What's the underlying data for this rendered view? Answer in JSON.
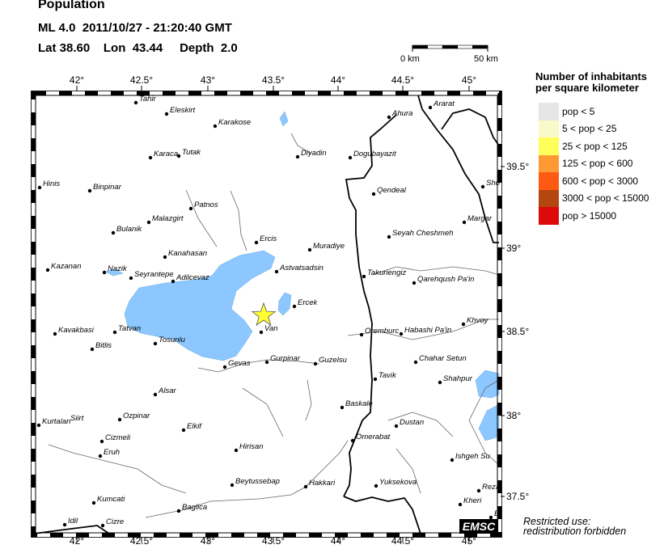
{
  "header": {
    "title": "Population",
    "event": "ML 4.0  2011/10/27 - 21:20:40 GMT",
    "location": "Lat 38.60    Lon  43.44     Depth  2.0"
  },
  "scale_bar": {
    "start_label": "0 km",
    "end_label": "50 km"
  },
  "axes": {
    "lon_labels": [
      "42°",
      "42.5°",
      "43°",
      "43.5°",
      "44°",
      "44.5°",
      "45°"
    ],
    "lat_labels": [
      "39.5°",
      "39°",
      "38.5°",
      "38°",
      "37.5°"
    ]
  },
  "epicenter": {
    "lat": 38.6,
    "lon": 43.44,
    "marker": "star",
    "color": "#ffff33"
  },
  "cities": [
    "Tahir",
    "Eleskirt",
    "Karakose",
    "Diyadin",
    "Dogubayazit",
    "Ahura",
    "Ararat",
    "Karaca",
    "Tutak",
    "Hinis",
    "Binpinar",
    "Patnos",
    "Qendeal",
    "Sho",
    "Malazgirt",
    "Bulanik",
    "Margar",
    "Seyah Cheshmeh",
    "Ercis",
    "Muradiye",
    "Kanahasan",
    "Kazanan",
    "Nazik",
    "Seyrantepe",
    "Adilcevaz",
    "Astvatsadsin",
    "Takuriengiz",
    "Qarehqush Pa'in",
    "Ercek",
    "Van",
    "Kavakbasi",
    "Tatvan",
    "Bitlis",
    "Tosunlu",
    "Oremburc",
    "Habashi Pa'in",
    "Khvoy",
    "Gurpinar",
    "Guzelsu",
    "Gevas",
    "Chahar Setun",
    "Tavik",
    "Shahpur",
    "Alsar",
    "Baskale",
    "Kurtalan",
    "Siirt",
    "Ozpinar",
    "Elkif",
    "Dustan",
    "Cizmeli",
    "Omerabat",
    "Hirisan",
    "Eruh",
    "Ishgeh Su",
    "Beytussebap",
    "Hakkari",
    "Yuksekova",
    "Reza",
    "Kumcati",
    "Kheri",
    "Baglica",
    "Idil",
    "Cizre",
    "B"
  ],
  "legend": {
    "title_line1": "Number of inhabitants",
    "title_line2": "per square kilometer",
    "items": [
      {
        "label": "pop < 5",
        "color": "#e6e6e6"
      },
      {
        "label": "5 < pop < 25",
        "color": "#fafac8"
      },
      {
        "label": "25 < pop < 125",
        "color": "#ffff5a"
      },
      {
        "label": "125 < pop < 600",
        "color": "#ff9933"
      },
      {
        "label": "600 < pop < 3000",
        "color": "#ff5a14"
      },
      {
        "label": "3000 < pop < 15000",
        "color": "#b4460f"
      },
      {
        "label": "pop > 15000",
        "color": "#dc0a0a"
      }
    ]
  },
  "water_color": "#8cc8ff",
  "logo": "EMSC",
  "restricted": {
    "line1": "Restricted use:",
    "line2": "redistribution forbidden"
  }
}
